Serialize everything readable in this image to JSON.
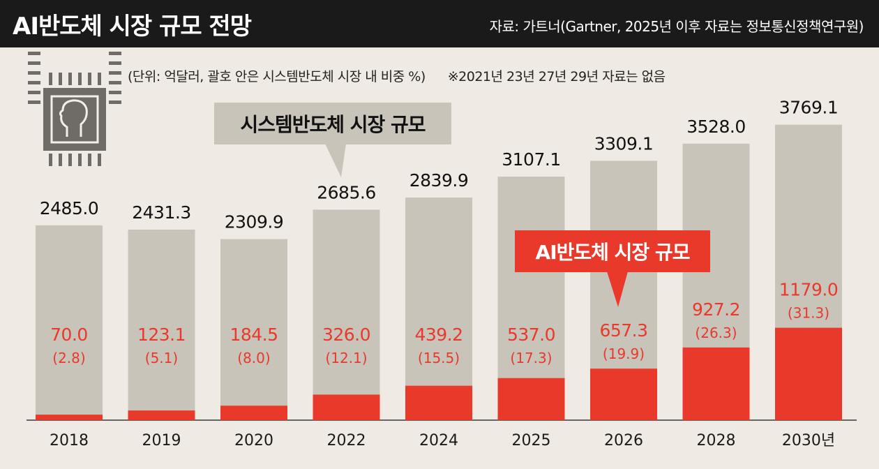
{
  "header": {
    "title": "AI반도체 시장 규모 전망",
    "source": "자료: 가트너(Gartner, 2025년 이후 자료는 정보통신정책연구원)"
  },
  "notes": {
    "unit": "(단위: 억달러, 괄호 안은 시스템반도체 시장 내 비중 %)",
    "missing": "※2021년 23년 27년 29년 자료는 없음"
  },
  "colors": {
    "system_bar": "#c8c4ba",
    "ai_bar": "#e8392b",
    "background": "#efebe4",
    "header": "#1a1a1a",
    "chip_icon": "#6f6c68"
  },
  "icon": "ai-chip-icon",
  "callouts": {
    "system": "시스템반도체 시장 규모",
    "ai": "AI반도체 시장 규모"
  },
  "chart_data": {
    "type": "bar",
    "categories": [
      "2018",
      "2019",
      "2020",
      "2022",
      "2024",
      "2025",
      "2026",
      "2028",
      "2030년"
    ],
    "series": [
      {
        "name": "시스템반도체 시장 규모",
        "values": [
          2485.0,
          2431.3,
          2309.9,
          2685.6,
          2839.9,
          3107.1,
          3309.1,
          3528.0,
          3769.1
        ],
        "labels": [
          "2485.0",
          "2431.3",
          "2309.9",
          "2685.6",
          "2839.9",
          "3107.1",
          "3309.1",
          "3528.0",
          "3769.1"
        ]
      },
      {
        "name": "AI반도체 시장 규모",
        "values": [
          70.0,
          123.1,
          184.5,
          326.0,
          439.2,
          537.0,
          657.3,
          927.2,
          1179.0
        ],
        "labels": [
          "70.0",
          "123.1",
          "184.5",
          "326.0",
          "439.2",
          "537.0",
          "657.3",
          "927.2",
          "1179.0"
        ],
        "share_labels": [
          "(2.8)",
          "(5.1)",
          "(8.0)",
          "(12.1)",
          "(15.5)",
          "(17.3)",
          "(19.9)",
          "(26.3)",
          "(31.3)"
        ]
      }
    ],
    "ylim": [
      0,
      3800
    ]
  }
}
